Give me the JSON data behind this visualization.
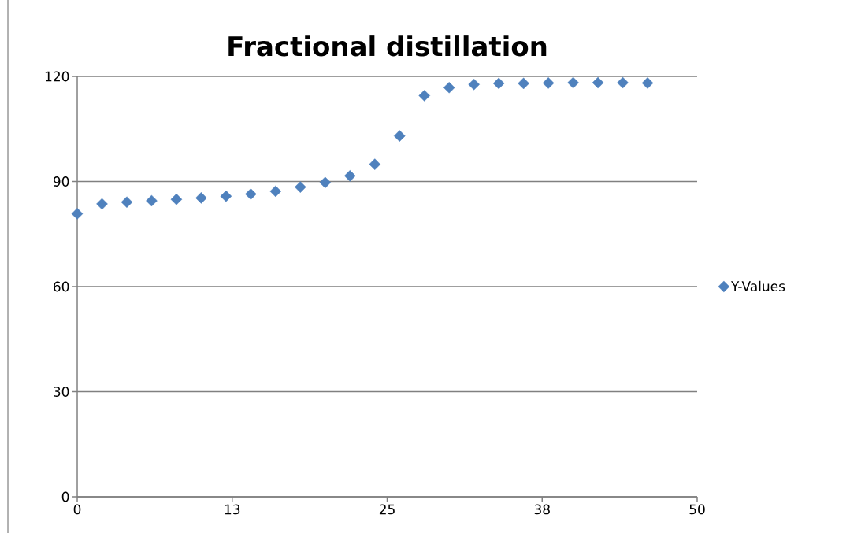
{
  "chart_data": {
    "type": "scatter",
    "title": "Fractional distillation",
    "x": [
      0,
      2,
      4,
      6,
      8,
      10,
      12,
      14,
      16,
      18,
      20,
      22,
      24,
      26,
      28,
      30,
      32,
      34,
      36,
      38,
      40,
      42,
      44,
      46
    ],
    "series": [
      {
        "name": "Y-Values",
        "color": "#4f81bd",
        "values": [
          80.8,
          83.6,
          84.1,
          84.5,
          84.9,
          85.3,
          85.8,
          86.4,
          87.2,
          88.4,
          89.7,
          91.6,
          94.9,
          103.0,
          114.5,
          116.8,
          117.7,
          118.0,
          118.0,
          118.1,
          118.2,
          118.2,
          118.2,
          118.1
        ]
      }
    ],
    "xlim": [
      0,
      50
    ],
    "xticks": [
      {
        "value": 0,
        "label": "0"
      },
      {
        "value": 12.5,
        "label": "13"
      },
      {
        "value": 25,
        "label": "25"
      },
      {
        "value": 37.5,
        "label": "38"
      },
      {
        "value": 50,
        "label": "50"
      }
    ],
    "ylim": [
      0,
      120
    ],
    "yticks": [
      0,
      30,
      60,
      90,
      120
    ],
    "grid": "y",
    "legend": "right",
    "marker": "diamond"
  }
}
